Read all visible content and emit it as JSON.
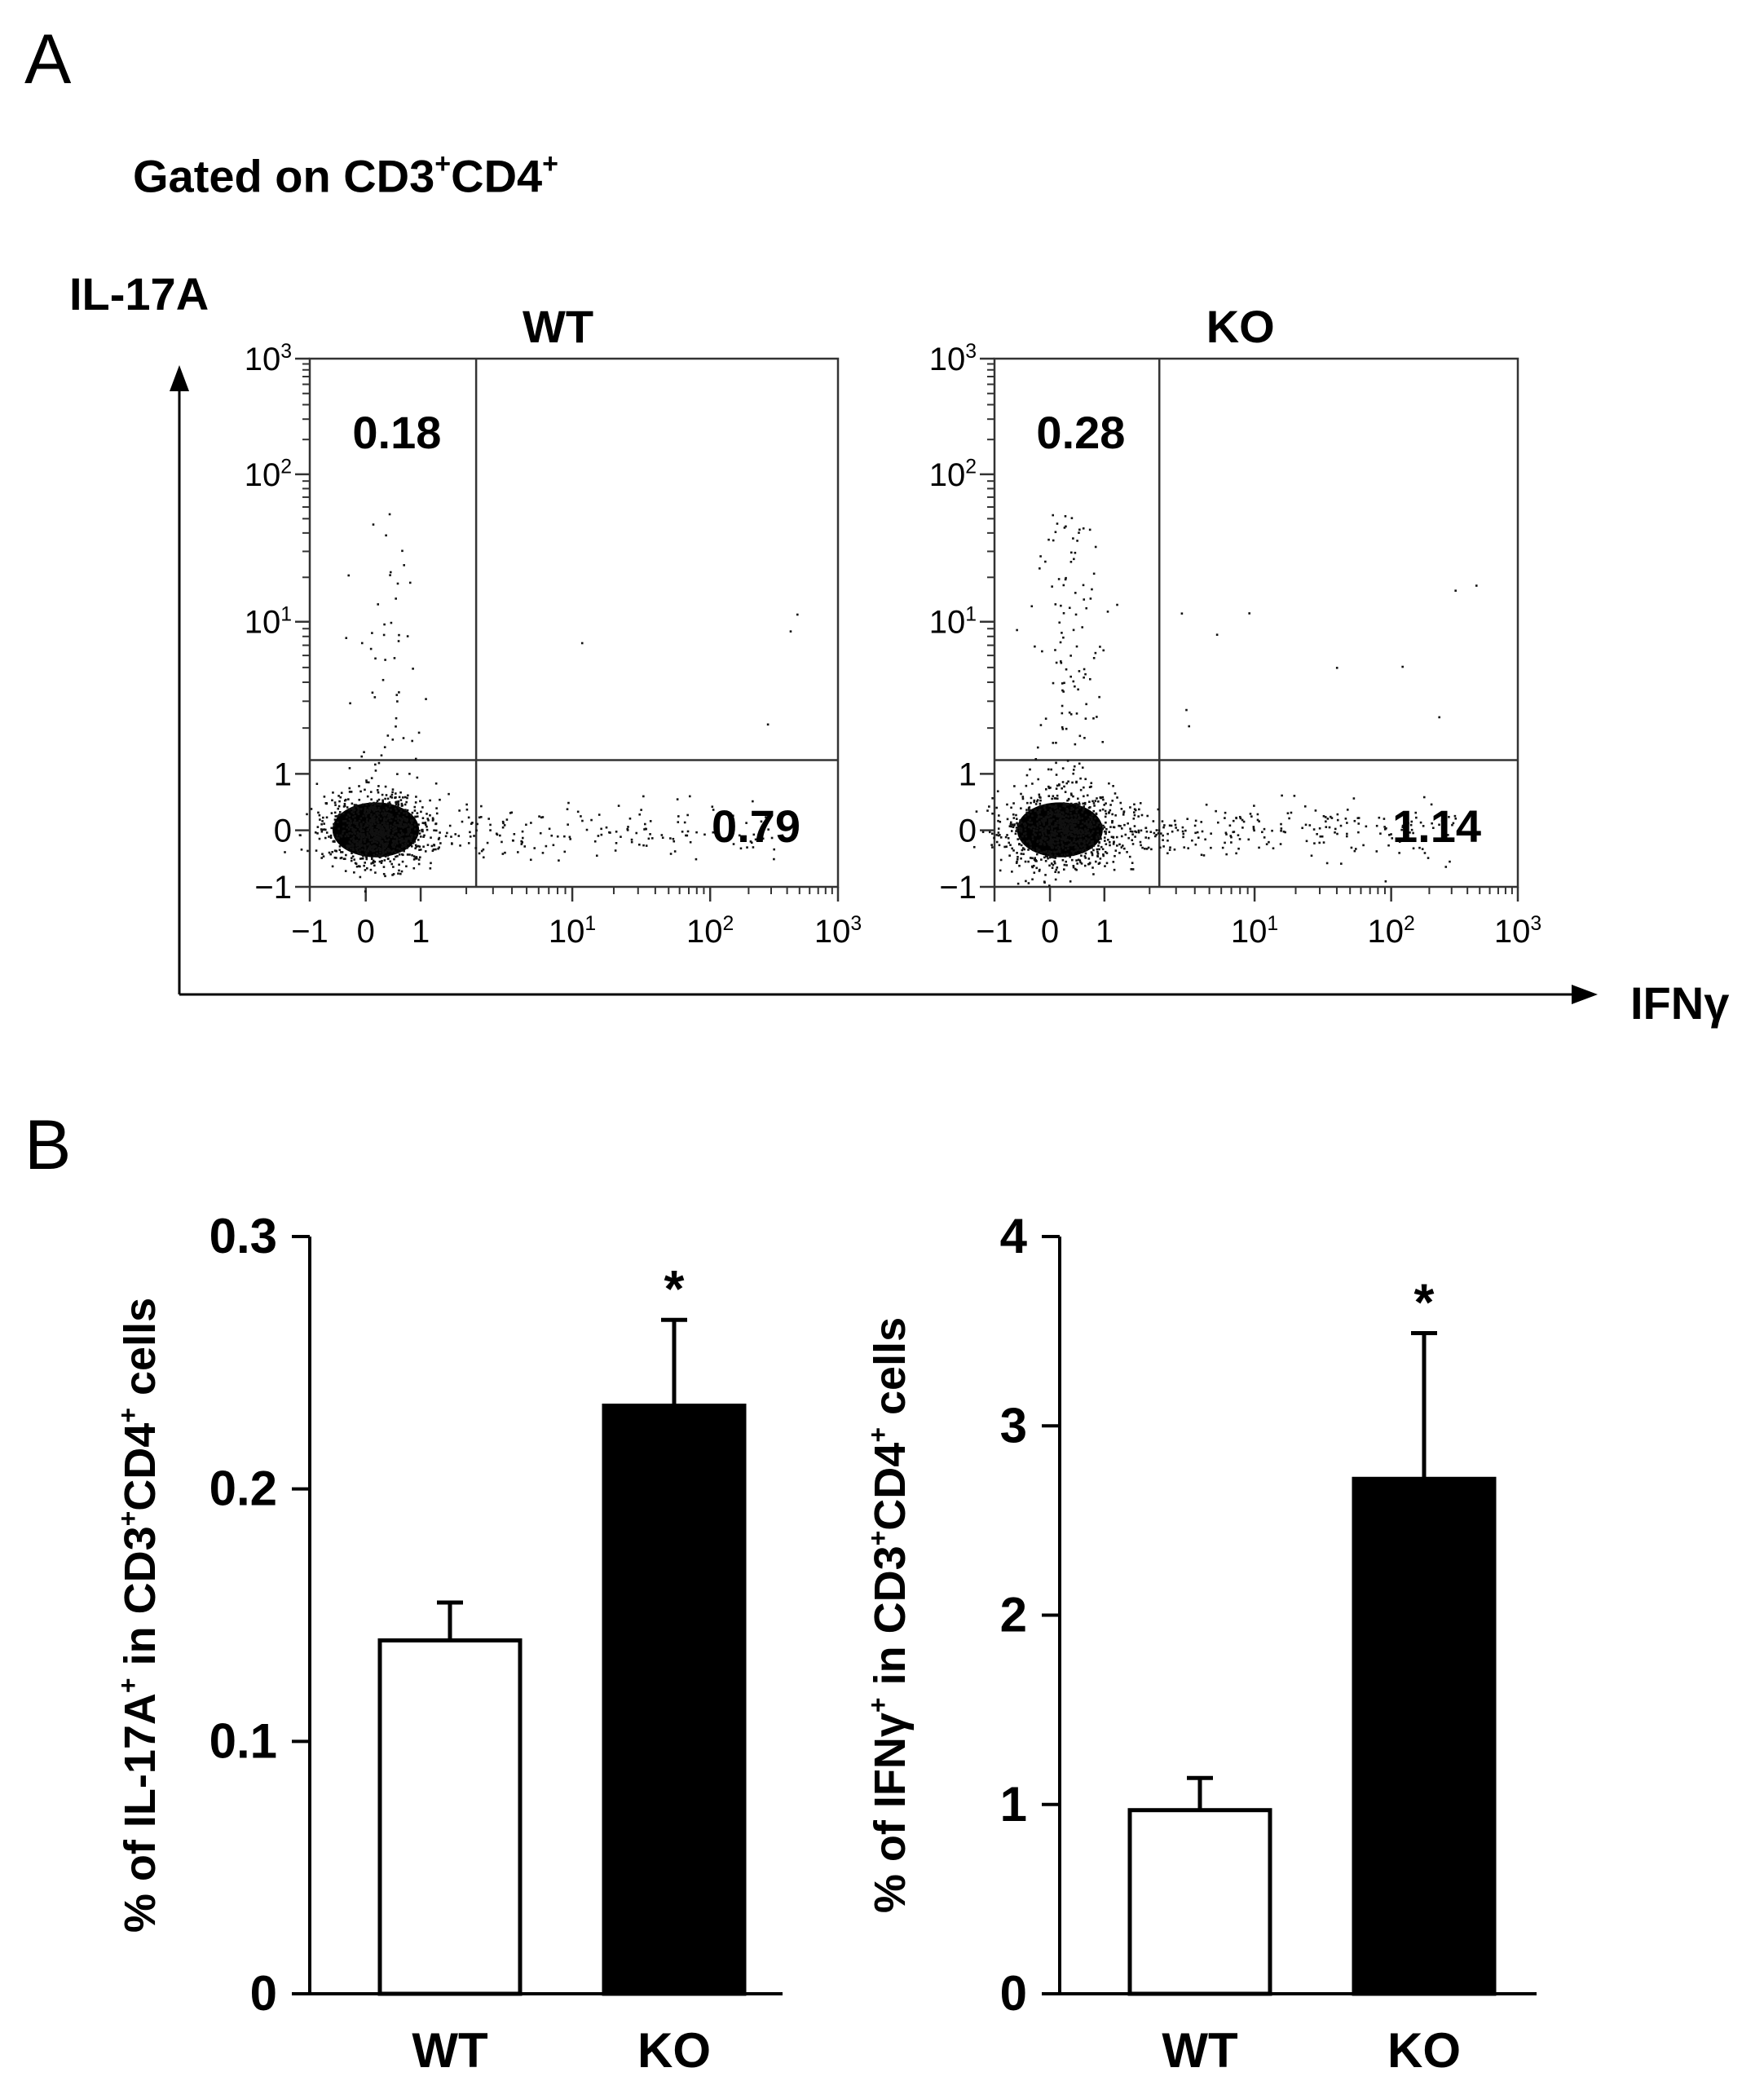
{
  "panel_a": {
    "letter": "A",
    "gating": {
      "prefix": "Gated on CD3",
      "sup1": "+",
      "mid": "CD4",
      "sup2": "+"
    },
    "y_axis_label": "IL-17A",
    "x_axis_label": "IFNγ",
    "y_tick_labels": [
      {
        "base": "10",
        "exp": "3"
      },
      {
        "base": "10",
        "exp": "2"
      },
      {
        "base": "10",
        "exp": "1"
      },
      {
        "base": "1",
        "exp": ""
      },
      {
        "base": "0",
        "exp": ""
      },
      {
        "base": "−1",
        "exp": ""
      }
    ],
    "x_tick_labels": [
      {
        "base": "−1",
        "exp": ""
      },
      {
        "base": "0",
        "exp": ""
      },
      {
        "base": "1",
        "exp": ""
      },
      {
        "base": "10",
        "exp": "1"
      },
      {
        "base": "10",
        "exp": "2"
      },
      {
        "base": "10",
        "exp": "3"
      }
    ]
  },
  "panel_b": {
    "letter": "B"
  },
  "chart_data": [
    {
      "type": "scatter",
      "title": "WT",
      "subtitle": "Gated on CD3+CD4+",
      "xlabel": "IFNγ",
      "ylabel": "IL-17A",
      "x_scale": "biexponential",
      "y_scale": "biexponential",
      "xlim": [
        -1,
        1000
      ],
      "ylim": [
        -1,
        1000
      ],
      "quadrant_percentages": {
        "upper_left": "0.18",
        "lower_right": "0.79"
      }
    },
    {
      "type": "scatter",
      "title": "KO",
      "subtitle": "Gated on CD3+CD4+",
      "xlabel": "IFNγ",
      "ylabel": "IL-17A",
      "x_scale": "biexponential",
      "y_scale": "biexponential",
      "xlim": [
        -1,
        1000
      ],
      "ylim": [
        -1,
        1000
      ],
      "quadrant_percentages": {
        "upper_left": "0.28",
        "lower_right": "1.14"
      }
    },
    {
      "type": "bar",
      "categories": [
        "WT",
        "KO"
      ],
      "values": [
        0.14,
        0.233
      ],
      "errors": [
        0.015,
        0.034
      ],
      "bar_colors": [
        "#ffffff",
        "#000000"
      ],
      "significance": [
        "",
        "*"
      ],
      "ylabel": {
        "p1": "% of IL-17A",
        "s1": "+",
        "p2": " in CD3",
        "s2": "+",
        "p3": "CD4",
        "s3": "+",
        "p4": " cells"
      },
      "ylim": [
        0,
        0.3
      ],
      "yticks": [
        "0",
        "0.1",
        "0.2",
        "0.3"
      ],
      "ytick_values": [
        0,
        0.1,
        0.2,
        0.3
      ]
    },
    {
      "type": "bar",
      "categories": [
        "WT",
        "KO"
      ],
      "values": [
        0.97,
        2.72
      ],
      "errors": [
        0.17,
        0.77
      ],
      "bar_colors": [
        "#ffffff",
        "#000000"
      ],
      "significance": [
        "",
        "*"
      ],
      "ylabel": {
        "p1": "% of IFNγ",
        "s1": "+",
        "p2": " in CD3",
        "s2": "+",
        "p3": "CD4",
        "s3": "+",
        "p4": " cells"
      },
      "ylim": [
        0,
        4
      ],
      "yticks": [
        "0",
        "1",
        "2",
        "3",
        "4"
      ],
      "ytick_values": [
        0,
        1,
        2,
        3,
        4
      ]
    }
  ]
}
